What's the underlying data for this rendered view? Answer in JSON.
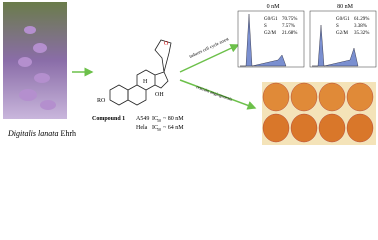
{
  "source": {
    "genus": "Digitalis lanata",
    "author": "Ehrh"
  },
  "structure": {
    "r_group": "RO",
    "hydroxyl": "OH",
    "lactone_o": "O",
    "h_label": "H"
  },
  "compound": {
    "name": "Compound 1",
    "assays": [
      {
        "cell": "A549",
        "ic": "IC",
        "sub": "50",
        "value": "~ 80 nM"
      },
      {
        "cell": "Hela",
        "ic": "IC",
        "sub": "50",
        "value": "~ 64 nM"
      }
    ]
  },
  "arrows": {
    "cell_cycle": "induces cell cycle arrest",
    "angiogenesis": "restrain angiogenesis"
  },
  "panels": [
    {
      "title": "0 nM",
      "phases": [
        {
          "name": "G0/G1",
          "value": "70.75%"
        },
        {
          "name": "S",
          "value": "7.57%"
        },
        {
          "name": "G2/M",
          "value": "21.68%"
        }
      ]
    },
    {
      "title": "80 nM",
      "phases": [
        {
          "name": "G0/G1",
          "value": "61.29%"
        },
        {
          "name": "S",
          "value": "3.38%"
        },
        {
          "name": "G2/M",
          "value": "35.32%"
        }
      ]
    }
  ]
}
